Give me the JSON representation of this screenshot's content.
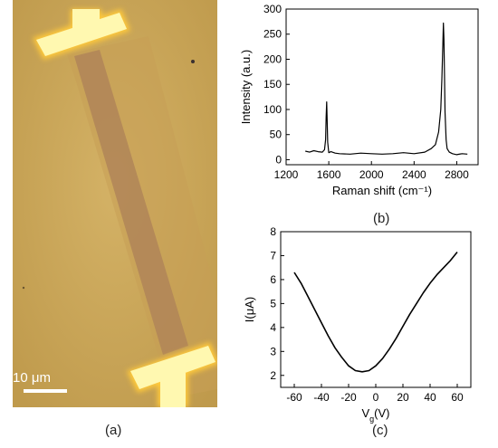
{
  "panels": {
    "a": {
      "label": "(a)",
      "scale_bar_label": "10 μm",
      "colors": {
        "background": "#c8a557",
        "channel": "#b48a5d",
        "electrode": "#fffaa8",
        "electrode_glow": "#ffcf40"
      }
    },
    "b": {
      "label": "(b)"
    },
    "c": {
      "label": "(c)"
    }
  },
  "chart_data": [
    {
      "type": "line",
      "panel": "b",
      "title": "",
      "xlabel": "Raman shift (cm⁻¹)",
      "ylabel": "Intensity (a.u.)",
      "xlim": [
        1200,
        3000
      ],
      "ylim": [
        -10,
        300
      ],
      "xticks": [
        1200,
        1600,
        2000,
        2400,
        2800
      ],
      "yticks": [
        0,
        50,
        100,
        150,
        200,
        250,
        300
      ],
      "color": "#000000",
      "series": [
        {
          "x": [
            1380,
            1420,
            1460,
            1500,
            1540,
            1560,
            1570,
            1575,
            1580,
            1585,
            1590,
            1600,
            1620,
            1660,
            1700,
            1800,
            1900,
            2000,
            2100,
            2200,
            2300,
            2400,
            2500,
            2560,
            2600,
            2630,
            2650,
            2660,
            2670,
            2675,
            2680,
            2685,
            2690,
            2700,
            2710,
            2730,
            2760,
            2800,
            2850,
            2900
          ],
          "y": [
            17,
            15,
            18,
            16,
            15,
            20,
            40,
            85,
            115,
            80,
            35,
            14,
            16,
            13,
            12,
            11,
            13,
            12,
            11,
            12,
            14,
            12,
            15,
            22,
            30,
            55,
            100,
            160,
            230,
            272,
            240,
            170,
            95,
            40,
            22,
            15,
            12,
            10,
            12,
            11
          ]
        }
      ]
    },
    {
      "type": "line",
      "panel": "c",
      "title": "",
      "xlabel": "V",
      "xlabel_sub": "g",
      "xlabel_tail": "(V)",
      "ylabel": "I(μA)",
      "xlim": [
        -70,
        70
      ],
      "ylim": [
        1.5,
        8
      ],
      "xticks": [
        -60,
        -40,
        -20,
        0,
        20,
        40,
        60
      ],
      "yticks": [
        2,
        3,
        4,
        5,
        6,
        7,
        8
      ],
      "color": "#000000",
      "series": [
        {
          "x": [
            -60,
            -55,
            -50,
            -45,
            -40,
            -35,
            -30,
            -25,
            -20,
            -15,
            -10,
            -5,
            0,
            5,
            10,
            15,
            20,
            25,
            30,
            35,
            40,
            45,
            50,
            55,
            60
          ],
          "y": [
            6.3,
            5.85,
            5.3,
            4.75,
            4.2,
            3.65,
            3.15,
            2.75,
            2.4,
            2.2,
            2.15,
            2.2,
            2.4,
            2.7,
            3.1,
            3.55,
            4.05,
            4.55,
            5.0,
            5.45,
            5.85,
            6.2,
            6.5,
            6.8,
            7.15
          ]
        }
      ]
    }
  ]
}
